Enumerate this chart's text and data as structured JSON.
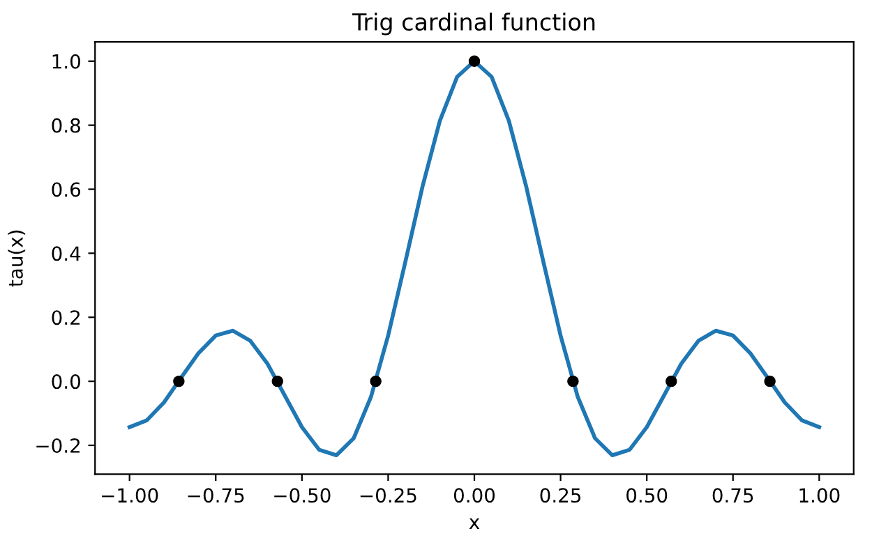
{
  "chart_data": {
    "type": "line",
    "title": "Trig cardinal function",
    "xlabel": "x",
    "ylabel": "tau(x)",
    "series": [
      {
        "color": "#1f77b4",
        "marker": "none",
        "line_style": "solid",
        "x": [
          -1.0,
          -0.95,
          -0.9,
          -0.85,
          -0.8,
          -0.75,
          -0.7,
          -0.65,
          -0.6,
          -0.55,
          -0.5,
          -0.45,
          -0.4,
          -0.35,
          -0.3,
          -0.25,
          -0.2,
          -0.15,
          -0.1,
          -0.05,
          0.0,
          0.05,
          0.1,
          0.15,
          0.2,
          0.25,
          0.3,
          0.35,
          0.4,
          0.45,
          0.5,
          0.55,
          0.6,
          0.65,
          0.7,
          0.75,
          0.8,
          0.85,
          0.9,
          0.95,
          1.0
        ],
        "values": [
          -0.143,
          -0.122,
          -0.066,
          0.012,
          0.088,
          0.143,
          0.158,
          0.127,
          0.055,
          -0.044,
          -0.143,
          -0.214,
          -0.231,
          -0.178,
          -0.049,
          0.143,
          0.374,
          0.61,
          0.814,
          0.951,
          1.0,
          0.951,
          0.814,
          0.61,
          0.374,
          0.143,
          -0.049,
          -0.178,
          -0.231,
          -0.214,
          -0.143,
          -0.044,
          0.055,
          0.127,
          0.158,
          0.143,
          0.088,
          0.012,
          -0.066,
          -0.122,
          -0.143
        ]
      },
      {
        "type": "scatter",
        "color": "#000000",
        "marker": "circle",
        "x": [
          -0.857,
          -0.571,
          -0.286,
          0.0,
          0.286,
          0.571,
          0.857
        ],
        "values": [
          0.0,
          0.0,
          0.0,
          1.0,
          0.0,
          0.0,
          0.0
        ]
      }
    ],
    "xlim": [
      -1.1,
      1.1
    ],
    "ylim": [
      -0.29,
      1.06
    ],
    "xticks": [
      {
        "value": -1.0,
        "label": "−1.00"
      },
      {
        "value": -0.75,
        "label": "−0.75"
      },
      {
        "value": -0.5,
        "label": "−0.50"
      },
      {
        "value": -0.25,
        "label": "−0.25"
      },
      {
        "value": 0.0,
        "label": "0.00"
      },
      {
        "value": 0.25,
        "label": "0.25"
      },
      {
        "value": 0.5,
        "label": "0.50"
      },
      {
        "value": 0.75,
        "label": "0.75"
      },
      {
        "value": 1.0,
        "label": "1.00"
      }
    ],
    "yticks": [
      {
        "value": -0.2,
        "label": "−0.2"
      },
      {
        "value": 0.0,
        "label": "0.0"
      },
      {
        "value": 0.2,
        "label": "0.2"
      },
      {
        "value": 0.4,
        "label": "0.4"
      },
      {
        "value": 0.6,
        "label": "0.6"
      },
      {
        "value": 0.8,
        "label": "0.8"
      },
      {
        "value": 1.0,
        "label": "1.0"
      }
    ],
    "grid": false,
    "legend": false
  }
}
